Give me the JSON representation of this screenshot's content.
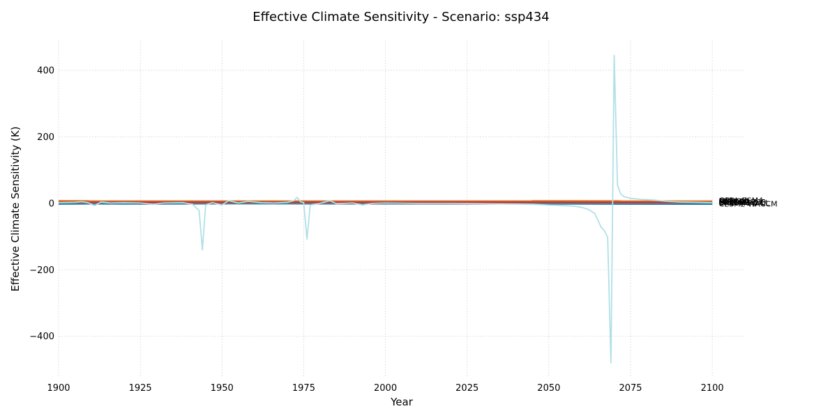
{
  "chart_data": {
    "type": "line",
    "title": "Effective Climate Sensitivity - Scenario: ssp434",
    "xlabel": "Year",
    "ylabel": "Effective Climate Sensitivity (K)",
    "xlim": [
      1900,
      2110
    ],
    "ylim": [
      -520,
      490
    ],
    "xticks": [
      1900,
      1925,
      1950,
      1975,
      2000,
      2025,
      2050,
      2075,
      2100
    ],
    "yticks": [
      -400,
      -200,
      0,
      200,
      400
    ],
    "xtick_labels": [
      "1900",
      "1925",
      "1950",
      "1975",
      "2000",
      "2025",
      "2050",
      "2075",
      "2100"
    ],
    "ytick_labels": [
      "−400",
      "−200",
      "0",
      "200",
      "400"
    ],
    "grid": true,
    "legend": "none",
    "series": [
      {
        "name": "MCM-UA-1-0",
        "color": "#e6842a",
        "points": [
          [
            1900,
            7.5
          ],
          [
            2100,
            7.2
          ]
        ]
      },
      {
        "name": "MIROC6",
        "color": "#8c564b",
        "points": [
          [
            1900,
            4.0
          ],
          [
            2100,
            3.8
          ]
        ]
      },
      {
        "name": "GFDL-ESM4",
        "color": "#3c8f3c",
        "points": [
          [
            1900,
            2.6
          ],
          [
            2100,
            2.5
          ]
        ]
      },
      {
        "name": "FGOALS-g3",
        "color": "#9ecae1",
        "points": [
          [
            1900,
            3.2
          ],
          [
            1950,
            3.0
          ],
          [
            2000,
            3.1
          ],
          [
            2050,
            2.9
          ],
          [
            2100,
            2.8
          ]
        ]
      },
      {
        "name": "CanESM5",
        "color": "#1f77b4",
        "points": [
          [
            1900,
            -2.0
          ],
          [
            1910,
            -1.5
          ],
          [
            1925,
            -1.8
          ],
          [
            1950,
            -1.0
          ],
          [
            1960,
            2.0
          ],
          [
            1975,
            -1.0
          ],
          [
            2000,
            -1.2
          ],
          [
            2025,
            -1.0
          ],
          [
            2050,
            -1.5
          ],
          [
            2075,
            -2.0
          ],
          [
            2100,
            -2.2
          ]
        ]
      },
      {
        "name": "CESM2-WACCM",
        "color": "#2f4f6f",
        "points": [
          [
            1900,
            -0.5
          ],
          [
            2100,
            -0.8
          ]
        ]
      },
      {
        "name": "UKESM1-0-LL",
        "color": "#17becf",
        "points": [
          [
            1900,
            1.0
          ],
          [
            2100,
            0.8
          ]
        ]
      },
      {
        "name": "ECS-3K",
        "color": "#d62728",
        "points": [
          [
            1900,
            3.0
          ],
          [
            2100,
            3.0
          ]
        ]
      },
      {
        "name": "GISS-E2-1-G",
        "color": "#b0e0e6",
        "points": [
          [
            1900,
            2
          ],
          [
            1905,
            3
          ],
          [
            1907,
            5
          ],
          [
            1909,
            2
          ],
          [
            1911,
            -7
          ],
          [
            1913,
            4
          ],
          [
            1916,
            1
          ],
          [
            1920,
            2
          ],
          [
            1925,
            1
          ],
          [
            1929,
            -3
          ],
          [
            1932,
            1
          ],
          [
            1938,
            2
          ],
          [
            1941,
            -3
          ],
          [
            1943,
            -22
          ],
          [
            1944,
            -140
          ],
          [
            1945,
            -5
          ],
          [
            1947,
            2
          ],
          [
            1950,
            -5
          ],
          [
            1952,
            8
          ],
          [
            1955,
            1
          ],
          [
            1958,
            6
          ],
          [
            1962,
            2
          ],
          [
            1966,
            1
          ],
          [
            1970,
            3
          ],
          [
            1972,
            8
          ],
          [
            1973,
            18
          ],
          [
            1974,
            5
          ],
          [
            1975,
            2
          ],
          [
            1976,
            -108
          ],
          [
            1977,
            -5
          ],
          [
            1980,
            0
          ],
          [
            1983,
            8
          ],
          [
            1985,
            -1
          ],
          [
            1990,
            1
          ],
          [
            1993,
            -5
          ],
          [
            1996,
            0
          ],
          [
            2000,
            1
          ],
          [
            2010,
            0
          ],
          [
            2020,
            0
          ],
          [
            2030,
            -1
          ],
          [
            2040,
            -2
          ],
          [
            2045,
            -3
          ],
          [
            2050,
            -5
          ],
          [
            2055,
            -7
          ],
          [
            2058,
            -9
          ],
          [
            2060,
            -12
          ],
          [
            2062,
            -18
          ],
          [
            2064,
            -30
          ],
          [
            2065,
            -50
          ],
          [
            2066,
            -72
          ],
          [
            2067,
            -82
          ],
          [
            2068,
            -102
          ],
          [
            2069,
            -480
          ],
          [
            2070,
            445
          ],
          [
            2071,
            55
          ],
          [
            2072,
            28
          ],
          [
            2073,
            20
          ],
          [
            2075,
            15
          ],
          [
            2078,
            12
          ],
          [
            2082,
            10
          ],
          [
            2086,
            6
          ],
          [
            2090,
            4
          ],
          [
            2095,
            3
          ],
          [
            2100,
            2
          ]
        ]
      }
    ],
    "end_labels": [
      "MCM-UA-1-0",
      "MIROC6",
      "GFDL-ESM4",
      "FGOALS-g3",
      "ECS-3K",
      "CanESM5",
      "CESM2-WACCM",
      "UKESM1-0-LL",
      "GISS-E2-1-G"
    ]
  }
}
